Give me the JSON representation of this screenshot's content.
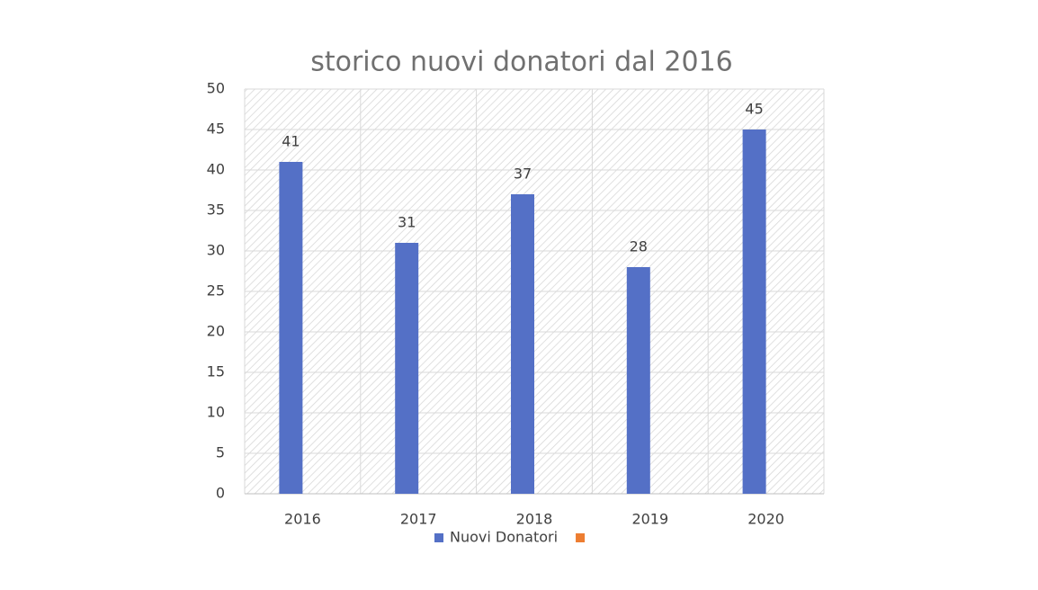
{
  "chart_data": {
    "type": "bar",
    "title": "storico nuovi donatori dal 2016",
    "categories": [
      "2016",
      "2017",
      "2018",
      "2019",
      "2020"
    ],
    "series": [
      {
        "name": "Nuovi Donatori",
        "color": "#5470c6",
        "values": [
          41,
          31,
          37,
          28,
          45
        ]
      },
      {
        "color": "#ed7d31",
        "values": [
          null,
          null,
          null,
          null,
          null
        ]
      }
    ],
    "ylim": [
      0,
      50
    ],
    "yticks": [
      0,
      5,
      10,
      15,
      20,
      25,
      30,
      35,
      40,
      45,
      50
    ],
    "grid": true,
    "legend": "bottom",
    "data_labels": true
  }
}
